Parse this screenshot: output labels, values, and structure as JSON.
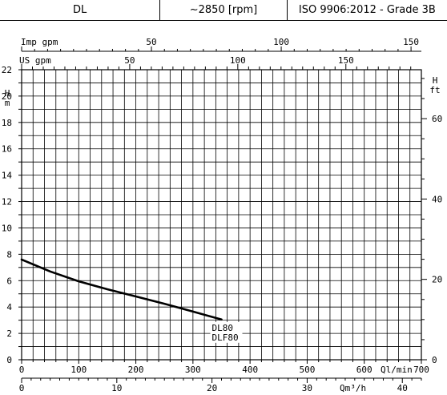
{
  "header": {
    "model": "DL",
    "speed": "~2850 [rpm]",
    "standard": "ISO 9906:2012 - Grade 3B"
  },
  "chart_data": {
    "type": "line",
    "title": "",
    "x_axis_bottom": {
      "label": "Ql/min",
      "min": 0,
      "max": 700,
      "ticks": [
        0,
        100,
        200,
        300,
        400,
        500,
        600,
        700
      ]
    },
    "x_axis_m3h": {
      "label": "Qm³/h",
      "min": 0,
      "max": 42,
      "ticks": [
        0,
        10,
        20,
        30,
        40
      ]
    },
    "x_axis_imp_gpm": {
      "label": "Imp gpm",
      "ticks": [
        50,
        100,
        150
      ]
    },
    "x_axis_us_gpm": {
      "label": "US gpm",
      "ticks": [
        50,
        100,
        150
      ]
    },
    "y_axis_left": {
      "label": "H m",
      "min": 0,
      "max": 22,
      "ticks": [
        0,
        2,
        4,
        6,
        8,
        10,
        12,
        14,
        16,
        18,
        20,
        22
      ]
    },
    "y_axis_right": {
      "label": "H ft",
      "min": 0,
      "max": 72.18,
      "ticks": [
        0,
        20,
        40,
        60
      ]
    },
    "grid": true,
    "series": [
      {
        "name": "DL80\nDLF80",
        "name_lines": [
          "DL80",
          "DLF80"
        ],
        "x": [
          0,
          50,
          100,
          150,
          200,
          250,
          300,
          350
        ],
        "y": [
          7.6,
          6.7,
          5.95,
          5.35,
          4.8,
          4.25,
          3.65,
          3.05
        ]
      }
    ]
  }
}
